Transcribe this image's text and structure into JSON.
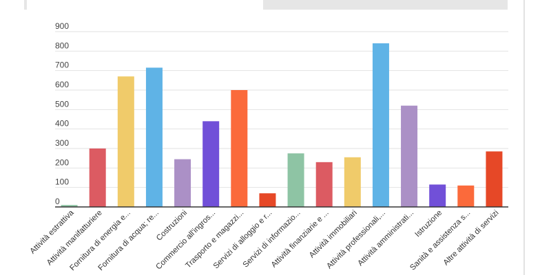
{
  "chart_data": {
    "type": "bar",
    "title": "",
    "xlabel": "",
    "ylabel": "",
    "ylim": [
      0,
      900
    ],
    "yticks": [
      0,
      100,
      200,
      300,
      400,
      500,
      600,
      700,
      800,
      900
    ],
    "grid": true,
    "legend": "none",
    "categories": [
      "Attività estrattiva",
      "Attività manifatturiere",
      "Fornitura di energia e...",
      "Fornitura di acqua; re...",
      "Costruzioni",
      "Commercio all'ingros...",
      "Trasporto e magazzi...",
      "Servizi di alloggio e r...",
      "Servizi di informazio...",
      "Attività finanziarie e ...",
      "Attività immobiliari",
      "Attività professionali,...",
      "Attività amministrati...",
      "Istruzione",
      "Sanità e assistenza s...",
      "Altre attività di servizi"
    ],
    "values": [
      10,
      300,
      670,
      715,
      245,
      440,
      600,
      70,
      275,
      230,
      255,
      840,
      520,
      115,
      110,
      285
    ],
    "colors": [
      "#8ec4a4",
      "#dc5b62",
      "#f0cb6a",
      "#5fb3e6",
      "#ab90c6",
      "#7150d8",
      "#fb6a3b",
      "#e64827",
      "#8ec4a4",
      "#dc5b62",
      "#f0cb6a",
      "#5fb3e6",
      "#ab90c6",
      "#7150d8",
      "#fb6a3b",
      "#e64827"
    ]
  }
}
